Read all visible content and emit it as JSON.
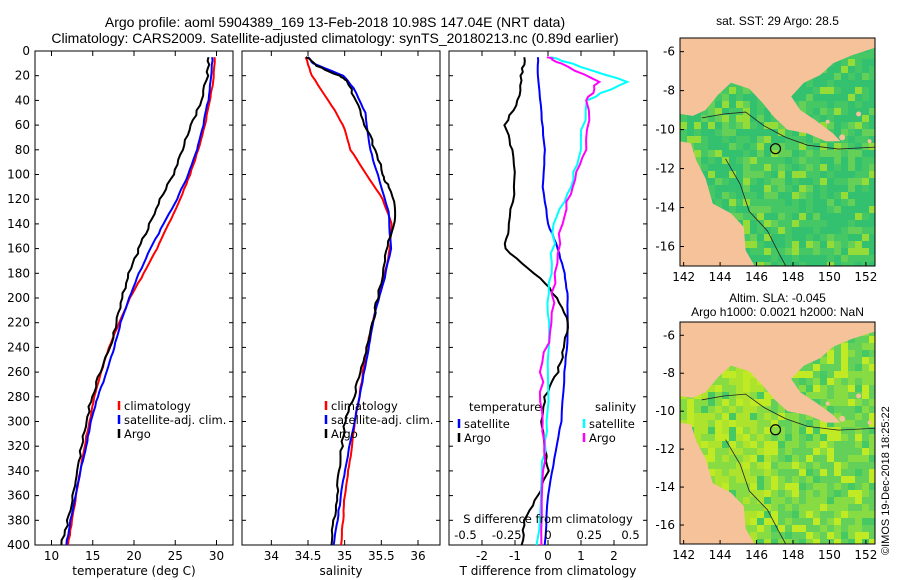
{
  "header": {
    "line1": "Argo profile: aoml 5904389_169 13-Feb-2018 10.98S 147.04E (NRT data)",
    "line2": "Climatology: CARS2009. Satellite-adjusted climatology: synTS_20180213.nc (0.89d earlier)"
  },
  "depth_axis": {
    "ticks": [
      "0",
      "20",
      "40",
      "60",
      "80",
      "100",
      "120",
      "140",
      "160",
      "180",
      "200",
      "220",
      "240",
      "260",
      "280",
      "300",
      "320",
      "340",
      "360",
      "380",
      "400"
    ]
  },
  "chart_data": [
    {
      "type": "line",
      "name": "temperature",
      "xlabel": "temperature (deg C)",
      "xlim": [
        8,
        32
      ],
      "ylim": [
        400,
        0
      ],
      "xticks": [
        10,
        15,
        20,
        25,
        30
      ],
      "legend": [
        "climatology",
        "satellite-adj. clim.",
        "Argo"
      ],
      "series": [
        {
          "name": "climatology",
          "color": "#ff0000",
          "points": [
            [
              29.8,
              5
            ],
            [
              29.6,
              25
            ],
            [
              29.2,
              40
            ],
            [
              28.6,
              60
            ],
            [
              27.8,
              80
            ],
            [
              26.8,
              100
            ],
            [
              25.6,
              120
            ],
            [
              24.2,
              140
            ],
            [
              22.8,
              160
            ],
            [
              21.2,
              180
            ],
            [
              19.5,
              200
            ],
            [
              18.2,
              220
            ],
            [
              17.0,
              240
            ],
            [
              16.0,
              260
            ],
            [
              15.2,
              280
            ],
            [
              14.6,
              300
            ],
            [
              14.0,
              320
            ],
            [
              13.5,
              340
            ],
            [
              13.0,
              360
            ],
            [
              12.5,
              380
            ],
            [
              12.0,
              400
            ]
          ]
        },
        {
          "name": "satellite-adj. clim.",
          "color": "#0000ff",
          "points": [
            [
              29.5,
              5
            ],
            [
              29.4,
              20
            ],
            [
              29.0,
              40
            ],
            [
              28.4,
              60
            ],
            [
              27.6,
              80
            ],
            [
              26.6,
              100
            ],
            [
              25.2,
              120
            ],
            [
              23.6,
              140
            ],
            [
              22.0,
              160
            ],
            [
              20.6,
              180
            ],
            [
              19.4,
              200
            ],
            [
              18.4,
              220
            ],
            [
              17.6,
              240
            ],
            [
              16.7,
              260
            ],
            [
              15.6,
              280
            ],
            [
              14.8,
              300
            ],
            [
              14.2,
              320
            ],
            [
              13.5,
              340
            ],
            [
              12.9,
              360
            ],
            [
              12.3,
              380
            ],
            [
              11.8,
              400
            ]
          ]
        },
        {
          "name": "Argo",
          "color": "#000000",
          "points": [
            [
              29.1,
              5
            ],
            [
              28.9,
              20
            ],
            [
              28.2,
              40
            ],
            [
              26.9,
              60
            ],
            [
              25.9,
              80
            ],
            [
              24.8,
              100
            ],
            [
              23.1,
              120
            ],
            [
              21.9,
              140
            ],
            [
              20.6,
              160
            ],
            [
              19.4,
              180
            ],
            [
              18.5,
              200
            ],
            [
              17.9,
              220
            ],
            [
              17.1,
              240
            ],
            [
              15.9,
              260
            ],
            [
              14.9,
              280
            ],
            [
              14.2,
              300
            ],
            [
              13.7,
              320
            ],
            [
              13.1,
              340
            ],
            [
              12.6,
              360
            ],
            [
              12.0,
              380
            ],
            [
              11.2,
              400
            ]
          ]
        }
      ]
    },
    {
      "type": "line",
      "name": "salinity",
      "xlabel": "salinity",
      "xlim": [
        33.6,
        36.3
      ],
      "ylim": [
        400,
        0
      ],
      "xticks": [
        34,
        34.5,
        35,
        35.5,
        36
      ],
      "legend": [
        "climatology",
        "satellite-adj. clim.",
        "Argo"
      ],
      "series": [
        {
          "name": "climatology",
          "color": "#ff0000",
          "points": [
            [
              34.47,
              5
            ],
            [
              34.55,
              20
            ],
            [
              34.78,
              40
            ],
            [
              34.98,
              60
            ],
            [
              35.08,
              80
            ],
            [
              35.3,
              100
            ],
            [
              35.52,
              120
            ],
            [
              35.64,
              140
            ],
            [
              35.62,
              160
            ],
            [
              35.55,
              180
            ],
            [
              35.46,
              200
            ],
            [
              35.38,
              220
            ],
            [
              35.3,
              240
            ],
            [
              35.25,
              260
            ],
            [
              35.2,
              280
            ],
            [
              35.14,
              300
            ],
            [
              35.1,
              320
            ],
            [
              35.05,
              340
            ],
            [
              35.0,
              360
            ],
            [
              34.98,
              380
            ],
            [
              34.95,
              400
            ]
          ]
        },
        {
          "name": "satellite-adj. clim.",
          "color": "#0000ff",
          "points": [
            [
              34.5,
              5
            ],
            [
              34.57,
              10
            ],
            [
              34.98,
              20
            ],
            [
              35.12,
              30
            ],
            [
              35.28,
              50
            ],
            [
              35.35,
              80
            ],
            [
              35.45,
              100
            ],
            [
              35.6,
              130
            ],
            [
              35.63,
              160
            ],
            [
              35.52,
              190
            ],
            [
              35.42,
              210
            ],
            [
              35.36,
              230
            ],
            [
              35.3,
              250
            ],
            [
              35.2,
              280
            ],
            [
              35.1,
              310
            ],
            [
              35.0,
              340
            ],
            [
              34.95,
              360
            ],
            [
              34.9,
              380
            ],
            [
              34.85,
              400
            ]
          ]
        },
        {
          "name": "Argo",
          "color": "#000000",
          "points": [
            [
              34.48,
              5
            ],
            [
              34.62,
              12
            ],
            [
              34.92,
              20
            ],
            [
              35.05,
              25
            ],
            [
              35.15,
              40
            ],
            [
              35.28,
              60
            ],
            [
              35.42,
              80
            ],
            [
              35.52,
              100
            ],
            [
              35.6,
              110
            ],
            [
              35.7,
              130
            ],
            [
              35.62,
              150
            ],
            [
              35.55,
              170
            ],
            [
              35.45,
              200
            ],
            [
              35.38,
              220
            ],
            [
              35.3,
              240
            ],
            [
              35.22,
              260
            ],
            [
              35.12,
              280
            ],
            [
              35.0,
              300
            ],
            [
              34.96,
              320
            ],
            [
              34.92,
              340
            ],
            [
              34.9,
              360
            ],
            [
              34.85,
              380
            ],
            [
              34.82,
              400
            ]
          ]
        }
      ]
    },
    {
      "type": "line",
      "name": "differences",
      "xlabel": "T difference from climatology",
      "secondary_xlabel": "S difference from climatology",
      "xlim": [
        -3,
        3
      ],
      "ylim": [
        400,
        0
      ],
      "xticks": [
        -2,
        -1,
        0,
        1,
        2
      ],
      "secondary_xticks": [
        "-0.5",
        "-0.25",
        "0",
        "0.25",
        "0.5"
      ],
      "legend_temperature_title": "temperature",
      "legend_salinity_title": "salinity",
      "legend": [
        "satellite",
        "Argo",
        "satellite",
        "Argo"
      ],
      "series": [
        {
          "name": "temperature satellite",
          "color": "#0000ff",
          "points": [
            [
              -0.3,
              5
            ],
            [
              -0.3,
              20
            ],
            [
              -0.2,
              50
            ],
            [
              -0.1,
              80
            ],
            [
              -0.15,
              110
            ],
            [
              0.0,
              140
            ],
            [
              0.3,
              160
            ],
            [
              0.5,
              180
            ],
            [
              0.6,
              200
            ],
            [
              0.6,
              230
            ],
            [
              0.5,
              260
            ],
            [
              0.4,
              300
            ],
            [
              0.2,
              330
            ],
            [
              0.0,
              360
            ],
            [
              -0.1,
              400
            ]
          ]
        },
        {
          "name": "temperature Argo",
          "color": "#000000",
          "points": [
            [
              -0.7,
              5
            ],
            [
              -0.8,
              20
            ],
            [
              -0.9,
              40
            ],
            [
              -1.3,
              60
            ],
            [
              -1.1,
              80
            ],
            [
              -1.0,
              110
            ],
            [
              -1.2,
              140
            ],
            [
              -1.3,
              160
            ],
            [
              -0.4,
              180
            ],
            [
              0.3,
              200
            ],
            [
              0.6,
              220
            ],
            [
              0.5,
              240
            ],
            [
              0.3,
              260
            ],
            [
              -0.1,
              280
            ],
            [
              -0.2,
              300
            ],
            [
              -0.1,
              320
            ],
            [
              0.0,
              340
            ],
            [
              -0.3,
              360
            ],
            [
              -0.7,
              380
            ],
            [
              -0.8,
              400
            ]
          ]
        },
        {
          "name": "salinity satellite",
          "color": "#00ffff",
          "points": [
            [
              0.02,
              5
            ],
            [
              0.14,
              10
            ],
            [
              0.48,
              25
            ],
            [
              0.23,
              40
            ],
            [
              0.2,
              80
            ],
            [
              0.14,
              110
            ],
            [
              0.04,
              140
            ],
            [
              0.02,
              180
            ],
            [
              0.0,
              220
            ],
            [
              0.0,
              300
            ],
            [
              -0.04,
              340
            ],
            [
              -0.07,
              400
            ]
          ]
        },
        {
          "name": "salinity Argo",
          "color": "#ff00ff",
          "points": [
            [
              0.0,
              5
            ],
            [
              0.08,
              10
            ],
            [
              0.3,
              25
            ],
            [
              0.24,
              40
            ],
            [
              0.24,
              80
            ],
            [
              0.14,
              110
            ],
            [
              0.08,
              140
            ],
            [
              0.04,
              180
            ],
            [
              0.02,
              220
            ],
            [
              -0.04,
              260
            ],
            [
              -0.04,
              300
            ],
            [
              -0.02,
              340
            ],
            [
              -0.04,
              400
            ]
          ]
        }
      ]
    },
    {
      "type": "heatmap",
      "name": "sst map",
      "title": "sat. SST: 29 Argo: 28.5",
      "xticks": [
        "142",
        "144",
        "146",
        "148",
        "150",
        "152"
      ],
      "yticks": [
        "-6",
        "-8",
        "-10",
        "-12",
        "-14",
        "-16"
      ],
      "xlim": [
        141.8,
        152.5
      ],
      "ylim": [
        -17,
        -5.3
      ],
      "argo_position": [
        147.04,
        -10.98
      ]
    },
    {
      "type": "heatmap",
      "name": "sla map",
      "title": "Altim. SLA: -0.045",
      "subtitle": "Argo h1000: 0.0021 h2000: NaN",
      "xticks": [
        "142",
        "144",
        "146",
        "148",
        "150",
        "152"
      ],
      "yticks": [
        "-6",
        "-8",
        "-10",
        "-12",
        "-14",
        "-16"
      ],
      "xlim": [
        141.8,
        152.5
      ],
      "ylim": [
        -17,
        -5.3
      ],
      "argo_position": [
        147.04,
        -10.98
      ]
    }
  ],
  "colors": {
    "land": "#f5c29a",
    "sea_dark": "#2ac078",
    "sea_mid": "#62d262",
    "sea_light": "#b8e826"
  },
  "footer": {
    "stamp": "©IMOS 19-Dec-2018 18:25:22"
  }
}
